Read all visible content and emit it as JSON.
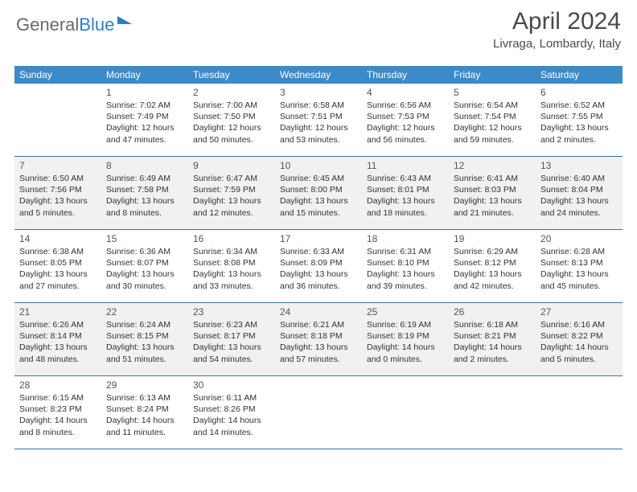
{
  "logo": {
    "text1": "General",
    "text2": "Blue"
  },
  "title": "April 2024",
  "location": "Livraga, Lombardy, Italy",
  "colors": {
    "header_bg": "#3b8bca",
    "header_text": "#ffffff",
    "shade_bg": "#f1f1f1",
    "border": "#3b6fa0",
    "brand_blue": "#2f7fc2",
    "text": "#333333"
  },
  "day_names": [
    "Sunday",
    "Monday",
    "Tuesday",
    "Wednesday",
    "Thursday",
    "Friday",
    "Saturday"
  ],
  "weeks": [
    {
      "shaded": false,
      "cells": [
        {
          "empty": true
        },
        {
          "day": "1",
          "sunrise": "Sunrise: 7:02 AM",
          "sunset": "Sunset: 7:49 PM",
          "dl1": "Daylight: 12 hours",
          "dl2": "and 47 minutes."
        },
        {
          "day": "2",
          "sunrise": "Sunrise: 7:00 AM",
          "sunset": "Sunset: 7:50 PM",
          "dl1": "Daylight: 12 hours",
          "dl2": "and 50 minutes."
        },
        {
          "day": "3",
          "sunrise": "Sunrise: 6:58 AM",
          "sunset": "Sunset: 7:51 PM",
          "dl1": "Daylight: 12 hours",
          "dl2": "and 53 minutes."
        },
        {
          "day": "4",
          "sunrise": "Sunrise: 6:56 AM",
          "sunset": "Sunset: 7:53 PM",
          "dl1": "Daylight: 12 hours",
          "dl2": "and 56 minutes."
        },
        {
          "day": "5",
          "sunrise": "Sunrise: 6:54 AM",
          "sunset": "Sunset: 7:54 PM",
          "dl1": "Daylight: 12 hours",
          "dl2": "and 59 minutes."
        },
        {
          "day": "6",
          "sunrise": "Sunrise: 6:52 AM",
          "sunset": "Sunset: 7:55 PM",
          "dl1": "Daylight: 13 hours",
          "dl2": "and 2 minutes."
        }
      ]
    },
    {
      "shaded": true,
      "cells": [
        {
          "day": "7",
          "sunrise": "Sunrise: 6:50 AM",
          "sunset": "Sunset: 7:56 PM",
          "dl1": "Daylight: 13 hours",
          "dl2": "and 5 minutes."
        },
        {
          "day": "8",
          "sunrise": "Sunrise: 6:49 AM",
          "sunset": "Sunset: 7:58 PM",
          "dl1": "Daylight: 13 hours",
          "dl2": "and 8 minutes."
        },
        {
          "day": "9",
          "sunrise": "Sunrise: 6:47 AM",
          "sunset": "Sunset: 7:59 PM",
          "dl1": "Daylight: 13 hours",
          "dl2": "and 12 minutes."
        },
        {
          "day": "10",
          "sunrise": "Sunrise: 6:45 AM",
          "sunset": "Sunset: 8:00 PM",
          "dl1": "Daylight: 13 hours",
          "dl2": "and 15 minutes."
        },
        {
          "day": "11",
          "sunrise": "Sunrise: 6:43 AM",
          "sunset": "Sunset: 8:01 PM",
          "dl1": "Daylight: 13 hours",
          "dl2": "and 18 minutes."
        },
        {
          "day": "12",
          "sunrise": "Sunrise: 6:41 AM",
          "sunset": "Sunset: 8:03 PM",
          "dl1": "Daylight: 13 hours",
          "dl2": "and 21 minutes."
        },
        {
          "day": "13",
          "sunrise": "Sunrise: 6:40 AM",
          "sunset": "Sunset: 8:04 PM",
          "dl1": "Daylight: 13 hours",
          "dl2": "and 24 minutes."
        }
      ]
    },
    {
      "shaded": false,
      "cells": [
        {
          "day": "14",
          "sunrise": "Sunrise: 6:38 AM",
          "sunset": "Sunset: 8:05 PM",
          "dl1": "Daylight: 13 hours",
          "dl2": "and 27 minutes."
        },
        {
          "day": "15",
          "sunrise": "Sunrise: 6:36 AM",
          "sunset": "Sunset: 8:07 PM",
          "dl1": "Daylight: 13 hours",
          "dl2": "and 30 minutes."
        },
        {
          "day": "16",
          "sunrise": "Sunrise: 6:34 AM",
          "sunset": "Sunset: 8:08 PM",
          "dl1": "Daylight: 13 hours",
          "dl2": "and 33 minutes."
        },
        {
          "day": "17",
          "sunrise": "Sunrise: 6:33 AM",
          "sunset": "Sunset: 8:09 PM",
          "dl1": "Daylight: 13 hours",
          "dl2": "and 36 minutes."
        },
        {
          "day": "18",
          "sunrise": "Sunrise: 6:31 AM",
          "sunset": "Sunset: 8:10 PM",
          "dl1": "Daylight: 13 hours",
          "dl2": "and 39 minutes."
        },
        {
          "day": "19",
          "sunrise": "Sunrise: 6:29 AM",
          "sunset": "Sunset: 8:12 PM",
          "dl1": "Daylight: 13 hours",
          "dl2": "and 42 minutes."
        },
        {
          "day": "20",
          "sunrise": "Sunrise: 6:28 AM",
          "sunset": "Sunset: 8:13 PM",
          "dl1": "Daylight: 13 hours",
          "dl2": "and 45 minutes."
        }
      ]
    },
    {
      "shaded": true,
      "cells": [
        {
          "day": "21",
          "sunrise": "Sunrise: 6:26 AM",
          "sunset": "Sunset: 8:14 PM",
          "dl1": "Daylight: 13 hours",
          "dl2": "and 48 minutes."
        },
        {
          "day": "22",
          "sunrise": "Sunrise: 6:24 AM",
          "sunset": "Sunset: 8:15 PM",
          "dl1": "Daylight: 13 hours",
          "dl2": "and 51 minutes."
        },
        {
          "day": "23",
          "sunrise": "Sunrise: 6:23 AM",
          "sunset": "Sunset: 8:17 PM",
          "dl1": "Daylight: 13 hours",
          "dl2": "and 54 minutes."
        },
        {
          "day": "24",
          "sunrise": "Sunrise: 6:21 AM",
          "sunset": "Sunset: 8:18 PM",
          "dl1": "Daylight: 13 hours",
          "dl2": "and 57 minutes."
        },
        {
          "day": "25",
          "sunrise": "Sunrise: 6:19 AM",
          "sunset": "Sunset: 8:19 PM",
          "dl1": "Daylight: 14 hours",
          "dl2": "and 0 minutes."
        },
        {
          "day": "26",
          "sunrise": "Sunrise: 6:18 AM",
          "sunset": "Sunset: 8:21 PM",
          "dl1": "Daylight: 14 hours",
          "dl2": "and 2 minutes."
        },
        {
          "day": "27",
          "sunrise": "Sunrise: 6:16 AM",
          "sunset": "Sunset: 8:22 PM",
          "dl1": "Daylight: 14 hours",
          "dl2": "and 5 minutes."
        }
      ]
    },
    {
      "shaded": false,
      "cells": [
        {
          "day": "28",
          "sunrise": "Sunrise: 6:15 AM",
          "sunset": "Sunset: 8:23 PM",
          "dl1": "Daylight: 14 hours",
          "dl2": "and 8 minutes."
        },
        {
          "day": "29",
          "sunrise": "Sunrise: 6:13 AM",
          "sunset": "Sunset: 8:24 PM",
          "dl1": "Daylight: 14 hours",
          "dl2": "and 11 minutes."
        },
        {
          "day": "30",
          "sunrise": "Sunrise: 6:11 AM",
          "sunset": "Sunset: 8:26 PM",
          "dl1": "Daylight: 14 hours",
          "dl2": "and 14 minutes."
        },
        {
          "empty": true
        },
        {
          "empty": true
        },
        {
          "empty": true
        },
        {
          "empty": true
        }
      ]
    }
  ]
}
